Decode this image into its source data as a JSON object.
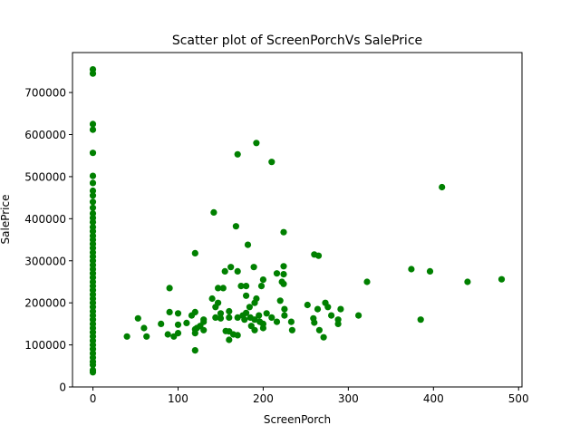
{
  "chart_data": {
    "type": "scatter",
    "title": "Scatter plot of ScreenPorchVs SalePrice",
    "xlabel": "ScreenPorch",
    "ylabel": "SalePrice",
    "xlim": [
      -24,
      504
    ],
    "ylim": [
      0,
      795000
    ],
    "xticks": [
      0,
      100,
      200,
      300,
      400,
      500
    ],
    "yticks": [
      0,
      100000,
      200000,
      300000,
      400000,
      500000,
      600000,
      700000
    ],
    "grid": false,
    "marker_color": "#008000",
    "points": [
      {
        "x": 0,
        "y": 755000
      },
      {
        "x": 0,
        "y": 745000
      },
      {
        "x": 0,
        "y": 625000
      },
      {
        "x": 0,
        "y": 611657
      },
      {
        "x": 0,
        "y": 556581
      },
      {
        "x": 0,
        "y": 501837
      },
      {
        "x": 0,
        "y": 485000
      },
      {
        "x": 0,
        "y": 466500
      },
      {
        "x": 0,
        "y": 455000
      },
      {
        "x": 0,
        "y": 440000
      },
      {
        "x": 0,
        "y": 426000
      },
      {
        "x": 0,
        "y": 412500
      },
      {
        "x": 0,
        "y": 402000
      },
      {
        "x": 0,
        "y": 392000
      },
      {
        "x": 0,
        "y": 380000
      },
      {
        "x": 0,
        "y": 370000
      },
      {
        "x": 0,
        "y": 359100
      },
      {
        "x": 0,
        "y": 350000
      },
      {
        "x": 0,
        "y": 340000
      },
      {
        "x": 0,
        "y": 330000
      },
      {
        "x": 0,
        "y": 320000
      },
      {
        "x": 0,
        "y": 310000
      },
      {
        "x": 0,
        "y": 300000
      },
      {
        "x": 0,
        "y": 290000
      },
      {
        "x": 0,
        "y": 280000
      },
      {
        "x": 0,
        "y": 270000
      },
      {
        "x": 0,
        "y": 260000
      },
      {
        "x": 0,
        "y": 250000
      },
      {
        "x": 0,
        "y": 240000
      },
      {
        "x": 0,
        "y": 230000
      },
      {
        "x": 0,
        "y": 220000
      },
      {
        "x": 0,
        "y": 210000
      },
      {
        "x": 0,
        "y": 200000
      },
      {
        "x": 0,
        "y": 190000
      },
      {
        "x": 0,
        "y": 180000
      },
      {
        "x": 0,
        "y": 170000
      },
      {
        "x": 0,
        "y": 160000
      },
      {
        "x": 0,
        "y": 150000
      },
      {
        "x": 0,
        "y": 140000
      },
      {
        "x": 0,
        "y": 130000
      },
      {
        "x": 0,
        "y": 120000
      },
      {
        "x": 0,
        "y": 110000
      },
      {
        "x": 0,
        "y": 100000
      },
      {
        "x": 0,
        "y": 90000
      },
      {
        "x": 0,
        "y": 80000
      },
      {
        "x": 0,
        "y": 70000
      },
      {
        "x": 0,
        "y": 60000
      },
      {
        "x": 0,
        "y": 52500
      },
      {
        "x": 0,
        "y": 40000
      },
      {
        "x": 0,
        "y": 34900
      },
      {
        "x": 40,
        "y": 120000
      },
      {
        "x": 53,
        "y": 163000
      },
      {
        "x": 60,
        "y": 140000
      },
      {
        "x": 63,
        "y": 120000
      },
      {
        "x": 80,
        "y": 150000
      },
      {
        "x": 88,
        "y": 125000
      },
      {
        "x": 90,
        "y": 178000
      },
      {
        "x": 90,
        "y": 235000
      },
      {
        "x": 95,
        "y": 120000
      },
      {
        "x": 100,
        "y": 128000
      },
      {
        "x": 100,
        "y": 148000
      },
      {
        "x": 100,
        "y": 175000
      },
      {
        "x": 110,
        "y": 152000
      },
      {
        "x": 116,
        "y": 170000
      },
      {
        "x": 120,
        "y": 87000
      },
      {
        "x": 120,
        "y": 128000
      },
      {
        "x": 120,
        "y": 137000
      },
      {
        "x": 120,
        "y": 178000
      },
      {
        "x": 120,
        "y": 318000
      },
      {
        "x": 122,
        "y": 140000
      },
      {
        "x": 126,
        "y": 145000
      },
      {
        "x": 130,
        "y": 160000
      },
      {
        "x": 130,
        "y": 155000
      },
      {
        "x": 130,
        "y": 135000
      },
      {
        "x": 140,
        "y": 210000
      },
      {
        "x": 142,
        "y": 415000
      },
      {
        "x": 144,
        "y": 190000
      },
      {
        "x": 144,
        "y": 165000
      },
      {
        "x": 147,
        "y": 235000
      },
      {
        "x": 147,
        "y": 200000
      },
      {
        "x": 150,
        "y": 175000
      },
      {
        "x": 150,
        "y": 163000
      },
      {
        "x": 153,
        "y": 235000
      },
      {
        "x": 155,
        "y": 275000
      },
      {
        "x": 156,
        "y": 133000
      },
      {
        "x": 160,
        "y": 180000
      },
      {
        "x": 160,
        "y": 112000
      },
      {
        "x": 160,
        "y": 132000
      },
      {
        "x": 160,
        "y": 165000
      },
      {
        "x": 162,
        "y": 285000
      },
      {
        "x": 165,
        "y": 125000
      },
      {
        "x": 168,
        "y": 382000
      },
      {
        "x": 170,
        "y": 553000
      },
      {
        "x": 170,
        "y": 275000
      },
      {
        "x": 170,
        "y": 165000
      },
      {
        "x": 170,
        "y": 123000
      },
      {
        "x": 174,
        "y": 240000
      },
      {
        "x": 176,
        "y": 170000
      },
      {
        "x": 178,
        "y": 160000
      },
      {
        "x": 180,
        "y": 240000
      },
      {
        "x": 180,
        "y": 217000
      },
      {
        "x": 180,
        "y": 176000
      },
      {
        "x": 182,
        "y": 338000
      },
      {
        "x": 184,
        "y": 190000
      },
      {
        "x": 185,
        "y": 165000
      },
      {
        "x": 186,
        "y": 145000
      },
      {
        "x": 189,
        "y": 285000
      },
      {
        "x": 190,
        "y": 200000
      },
      {
        "x": 190,
        "y": 160000
      },
      {
        "x": 190,
        "y": 135000
      },
      {
        "x": 192,
        "y": 580000
      },
      {
        "x": 192,
        "y": 210000
      },
      {
        "x": 195,
        "y": 170000
      },
      {
        "x": 196,
        "y": 155000
      },
      {
        "x": 198,
        "y": 240000
      },
      {
        "x": 200,
        "y": 255000
      },
      {
        "x": 200,
        "y": 150000
      },
      {
        "x": 200,
        "y": 140000
      },
      {
        "x": 204,
        "y": 175000
      },
      {
        "x": 210,
        "y": 535000
      },
      {
        "x": 210,
        "y": 165000
      },
      {
        "x": 216,
        "y": 270000
      },
      {
        "x": 216,
        "y": 155000
      },
      {
        "x": 220,
        "y": 205000
      },
      {
        "x": 222,
        "y": 250000
      },
      {
        "x": 224,
        "y": 368000
      },
      {
        "x": 224,
        "y": 287000
      },
      {
        "x": 224,
        "y": 268000
      },
      {
        "x": 224,
        "y": 245000
      },
      {
        "x": 225,
        "y": 185000
      },
      {
        "x": 225,
        "y": 170000
      },
      {
        "x": 233,
        "y": 155000
      },
      {
        "x": 234,
        "y": 135000
      },
      {
        "x": 252,
        "y": 195000
      },
      {
        "x": 259,
        "y": 163000
      },
      {
        "x": 260,
        "y": 315000
      },
      {
        "x": 260,
        "y": 153000
      },
      {
        "x": 264,
        "y": 185000
      },
      {
        "x": 265,
        "y": 312000
      },
      {
        "x": 266,
        "y": 135000
      },
      {
        "x": 271,
        "y": 118000
      },
      {
        "x": 273,
        "y": 200000
      },
      {
        "x": 276,
        "y": 190000
      },
      {
        "x": 280,
        "y": 170000
      },
      {
        "x": 288,
        "y": 160000
      },
      {
        "x": 288,
        "y": 150000
      },
      {
        "x": 291,
        "y": 185000
      },
      {
        "x": 312,
        "y": 170000
      },
      {
        "x": 322,
        "y": 250000
      },
      {
        "x": 374,
        "y": 280000
      },
      {
        "x": 385,
        "y": 160000
      },
      {
        "x": 396,
        "y": 275000
      },
      {
        "x": 410,
        "y": 475000
      },
      {
        "x": 440,
        "y": 250000
      },
      {
        "x": 480,
        "y": 256000
      }
    ]
  }
}
